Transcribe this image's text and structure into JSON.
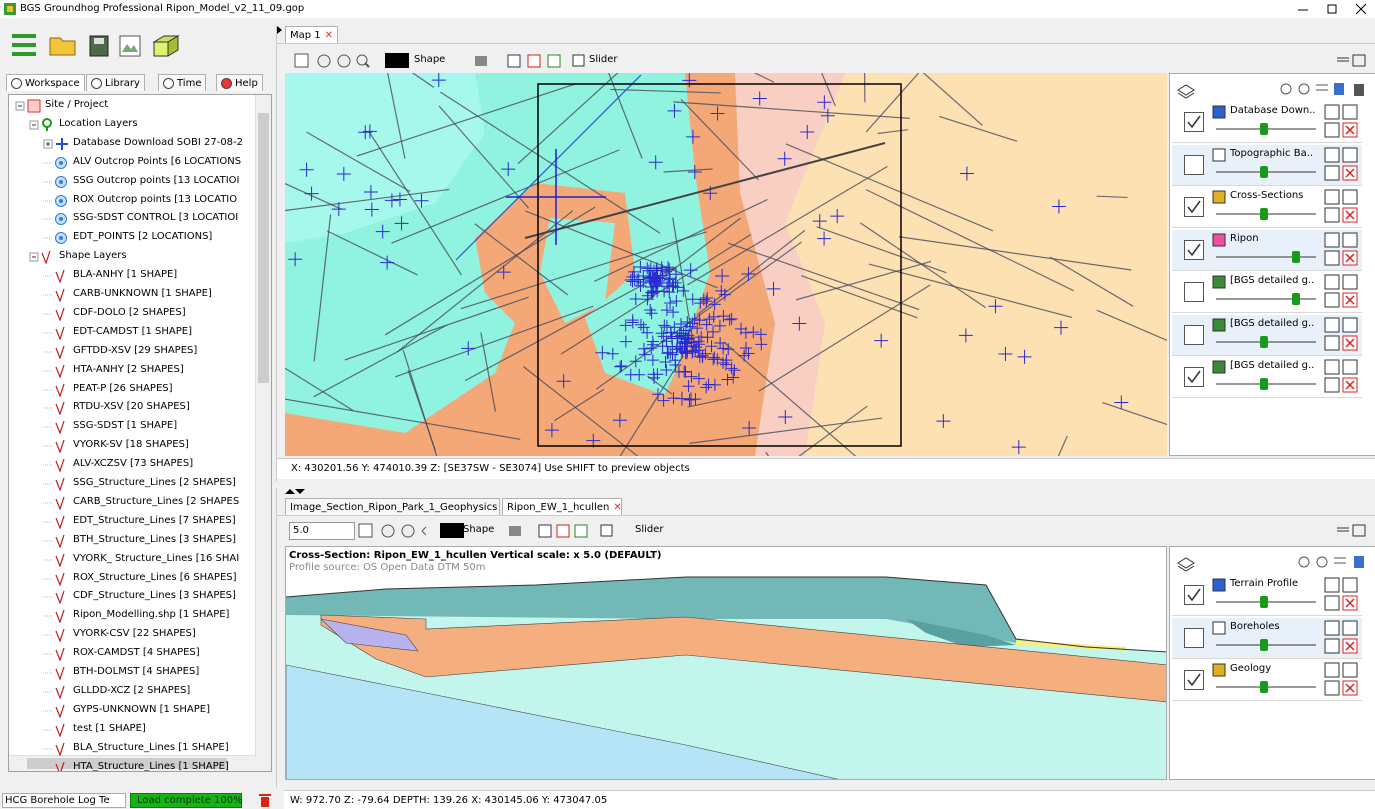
{
  "window": {
    "title": "BGS Groundhog Professional  Ripon_Model_v2_11_09.gop"
  },
  "left_panel": {
    "tabs": [
      "Workspace",
      "Library",
      "Time",
      "Help"
    ],
    "tree": {
      "root": "Site / Project",
      "location_group": "Location Layers",
      "location_items": [
        "Database Download SOBI 27-08-2",
        "ALV Outcrop Points [6 LOCATIONS",
        "SSG Outcrop points [13 LOCATIOI",
        "ROX Outcrop points [13 LOCATIO",
        "SSG-SDST CONTROL [3 LOCATIOI",
        "EDT_POINTS [2 LOCATIONS]"
      ],
      "shape_group": "Shape Layers",
      "shape_items": [
        "BLA-ANHY [1 SHAPE]",
        "CARB-UNKNOWN [1 SHAPE]",
        "CDF-DOLO [2 SHAPES]",
        "EDT-CAMDST [1 SHAPE]",
        "GFTDD-XSV [29 SHAPES]",
        "HTA-ANHY [2 SHAPES]",
        "PEAT-P [26 SHAPES]",
        "RTDU-XSV [20 SHAPES]",
        "SSG-SDST [1 SHAPE]",
        "VYORK-SV [18 SHAPES]",
        "ALV-XCZSV [73 SHAPES]",
        "SSG_Structure_Lines [2 SHAPES]",
        "CARB_Structure_Lines [2 SHAPES",
        "EDT_Structure_Lines [7 SHAPES]",
        "BTH_Structure_Lines [3 SHAPES]",
        "VYORK_ Structure_Lines [16 SHAI",
        "ROX_Structure_Lines [6 SHAPES]",
        "CDF_Structure_Lines [3 SHAPES]",
        "Ripon_Modelling.shp [1 SHAPE]",
        "VYORK-CSV [22 SHAPES]",
        "ROX-CAMDST [4 SHAPES]",
        "BTH-DOLMST [4 SHAPES]",
        "GLLDD-XCZ [2 SHAPES]",
        "GYPS-UNKNOWN [1 SHAPE]",
        "test [1 SHAPE]",
        "BLA_Structure_Lines [1 SHAPE]",
        "HTA_Structure_Lines [1 SHAPE]"
      ]
    },
    "dropdown": "HCG Borehole Log Te",
    "progress": "Load complete 100%"
  },
  "map": {
    "tab": "Map 1",
    "shape_label": "Shape",
    "slider_label": "Slider",
    "status": "X: 430201.56 Y: 474010.39 Z:  [SE37SW - SE3074]   Use SHIFT to preview objects",
    "layers": [
      {
        "name": "Database Down..",
        "checked": true
      },
      {
        "name": "Topographic Ba..",
        "checked": false
      },
      {
        "name": "Cross-Sections",
        "checked": true
      },
      {
        "name": "Ripon",
        "checked": true
      },
      {
        "name": "[BGS detailed g..",
        "checked": false
      },
      {
        "name": "[BGS detailed g..",
        "checked": false
      },
      {
        "name": "[BGS detailed g..",
        "checked": true
      }
    ]
  },
  "section": {
    "tabs": [
      "Image_Section_Ripon_Park_1_Geophysics",
      "Ripon_EW_1_hcullen"
    ],
    "scale": "5.0",
    "shape_label": "Shape",
    "slider_label": "Slider",
    "title": "Cross-Section: Ripon_EW_1_hcullen  Vertical scale: x 5.0 (DEFAULT)",
    "subtitle": "Profile source: OS Open Data DTM 50m",
    "status": "W: 972.70 Z: -79.64 DEPTH: 139.26 X: 430145.06 Y: 473047.05",
    "layers": [
      {
        "name": "Terrain Profile",
        "checked": true
      },
      {
        "name": "Boreholes",
        "checked": false
      },
      {
        "name": "Geology",
        "checked": true
      }
    ]
  }
}
